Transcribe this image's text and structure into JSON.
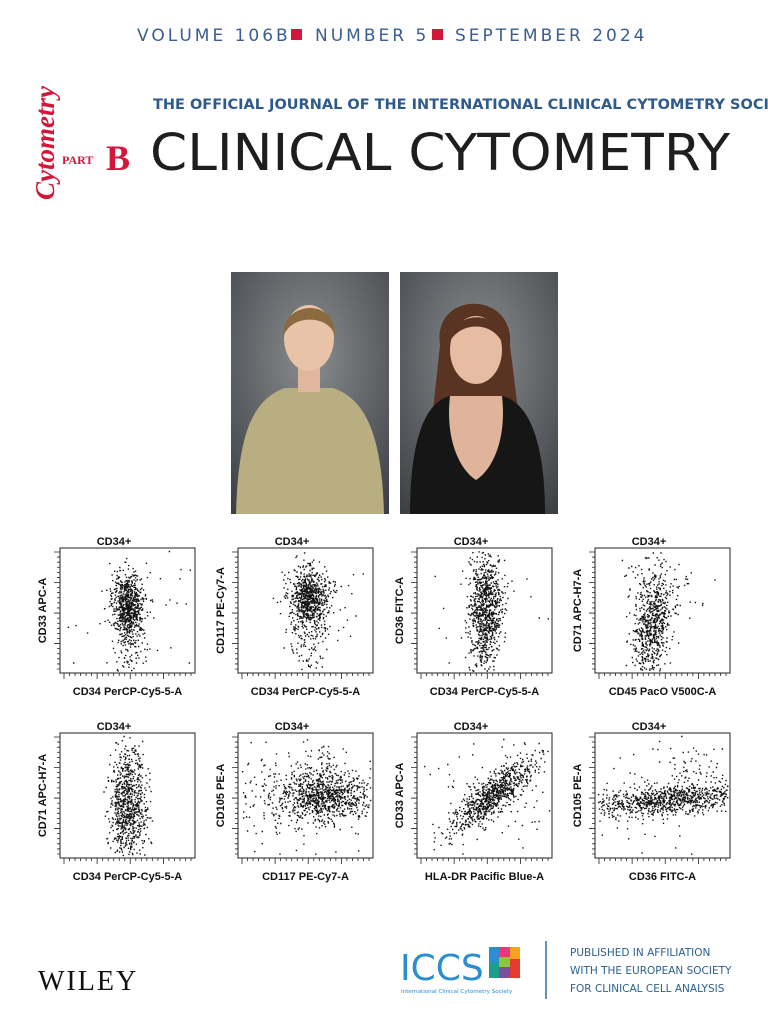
{
  "header": {
    "volume": "VOLUME 106B",
    "number": "NUMBER 5",
    "date": "SEPTEMBER 2024"
  },
  "logo": {
    "word": "Cytometry",
    "part": "PART",
    "letter": "B"
  },
  "subtitle": "THE OFFICIAL JOURNAL OF THE INTERNATIONAL CLINICAL CYTOMETRY SOCIETY",
  "title": "CLINICAL CYTOMETRY",
  "plots": [
    {
      "title": "CD34+",
      "y_label": "CD33 APC-A",
      "x_label": "CD34 PerCP-Cy5-5-A"
    },
    {
      "title": "CD34+",
      "y_label": "CD117 PE-Cy7-A",
      "x_label": "CD34 PerCP-Cy5-5-A"
    },
    {
      "title": "CD34+",
      "y_label": "CD36 FITC-A",
      "x_label": "CD34 PerCP-Cy5-5-A"
    },
    {
      "title": "CD34+",
      "y_label": "CD71 APC-H7-A",
      "x_label": "CD45 PacO V500C-A"
    },
    {
      "title": "CD34+",
      "y_label": "CD71 APC-H7-A",
      "x_label": "CD34 PerCP-Cy5-5-A"
    },
    {
      "title": "CD34+",
      "y_label": "CD105 PE-A",
      "x_label": "CD117 PE-Cy7-A"
    },
    {
      "title": "CD34+",
      "y_label": "CD33 APC-A",
      "x_label": "HLA-DR Pacific Blue-A"
    },
    {
      "title": "CD34+",
      "y_label": "CD105 PE-A",
      "x_label": "CD36 FITC-A"
    }
  ],
  "footer": {
    "publisher": "WILEY",
    "society_short": "ICCS",
    "society_full": "International Clinical Cytometry Society",
    "affiliation": [
      "PUBLISHED IN AFFILIATION",
      "WITH THE EUROPEAN SOCIETY",
      "FOR CLINICAL CELL ANALYSIS"
    ]
  }
}
